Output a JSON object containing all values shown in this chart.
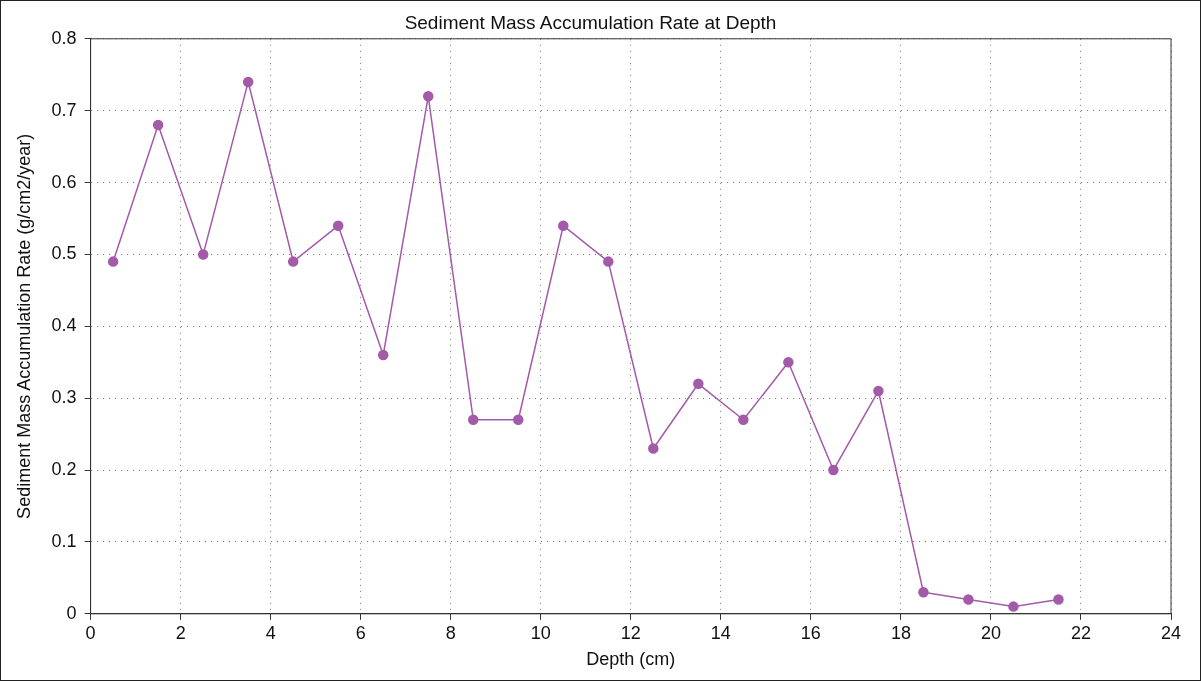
{
  "chart_data": {
    "type": "line",
    "title": "Sediment Mass Accumulation Rate at Depth",
    "xlabel": "Depth (cm)",
    "ylabel": "Sediment Mass Accumulation Rate (g/cm2/year)",
    "x": [
      0.5,
      1.5,
      2.5,
      3.5,
      4.5,
      5.5,
      6.5,
      7.5,
      8.5,
      9.5,
      10.5,
      11.5,
      12.5,
      13.5,
      14.5,
      15.5,
      16.5,
      17.5,
      18.5,
      19.5,
      20.5,
      21.5
    ],
    "series": [
      {
        "color": "#a35aa8",
        "values": [
          0.49,
          0.68,
          0.5,
          0.74,
          0.49,
          0.54,
          0.36,
          0.72,
          0.27,
          0.27,
          0.54,
          0.49,
          0.23,
          0.32,
          0.27,
          0.35,
          0.2,
          0.31,
          0.03,
          0.02,
          0.01,
          0.02
        ]
      }
    ],
    "xlim": [
      0,
      24
    ],
    "xticks": [
      0,
      2,
      4,
      6,
      8,
      10,
      12,
      14,
      16,
      18,
      20,
      22,
      24
    ],
    "ylim": [
      0,
      0.8
    ],
    "yticks": [
      0,
      0.1,
      0.2,
      0.3,
      0.4,
      0.5,
      0.6,
      0.7,
      0.8
    ],
    "grid": true,
    "marker": "circle",
    "line_style": "solid",
    "legend": false
  }
}
